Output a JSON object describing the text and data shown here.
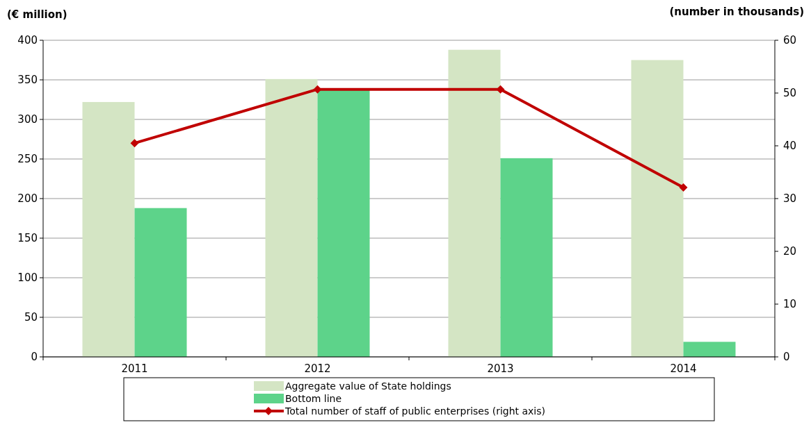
{
  "chart_data": {
    "type": "bar",
    "ylabel": "(€ million)",
    "y2label": "(number in thousands)",
    "categories": [
      "2011",
      "2012",
      "2013",
      "2014"
    ],
    "series": [
      {
        "name": "Aggregate value of State holdings",
        "color": "#d4e5c4",
        "values": [
          322,
          351,
          388,
          375
        ]
      },
      {
        "name": "Bottom line",
        "color": "#5dd38a",
        "values": [
          188,
          337,
          251,
          19
        ]
      },
      {
        "name": "Total number of staff of public enterprises (right axis)",
        "type": "line",
        "axis": "y2",
        "color": "#c00000",
        "marker": "diamond",
        "values": [
          40.5,
          50.7,
          50.7,
          32.1
        ]
      }
    ],
    "ylim": [
      0,
      400
    ],
    "yticks": [
      0,
      50,
      100,
      150,
      200,
      250,
      300,
      350,
      400
    ],
    "y2lim": [
      0,
      60
    ],
    "y2ticks": [
      0,
      10,
      20,
      30,
      40,
      50,
      60
    ],
    "grid": "y",
    "legend": "bottom"
  }
}
